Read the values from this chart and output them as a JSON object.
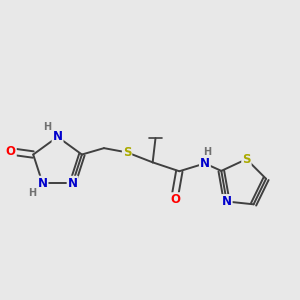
{
  "bg_color": "#e8e8e8",
  "atom_colors": {
    "C": "#404040",
    "N": "#0000cc",
    "O": "#ff0000",
    "S": "#aaaa00",
    "H": "#707070"
  },
  "bond_color": "#404040",
  "bond_width": 1.4,
  "font_size": 8.5
}
